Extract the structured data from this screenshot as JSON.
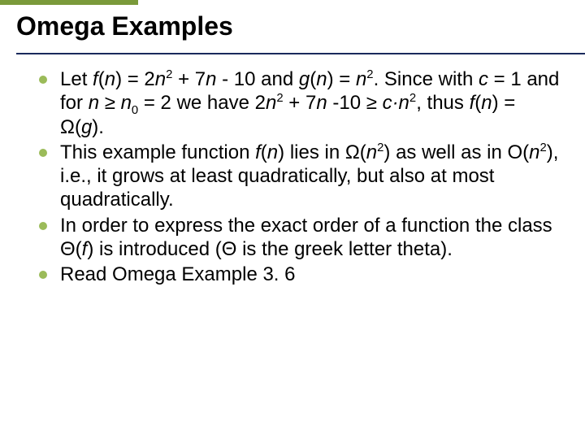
{
  "slide": {
    "title": "Omega Examples",
    "title_fontsize": 32,
    "title_color": "#000000",
    "accent_bar_color": "#7a9a3a",
    "rule_color": "#1a2a5c",
    "bullet_marker_color": "#9bbb59",
    "body_fontsize": 24,
    "body_color": "#000000",
    "background_color": "#ffffff",
    "bullets": [
      {
        "segments": [
          {
            "t": "Let  "
          },
          {
            "t": "f",
            "it": true
          },
          {
            "t": "("
          },
          {
            "t": "n",
            "it": true
          },
          {
            "t": ") = 2"
          },
          {
            "t": "n",
            "it": true
          },
          {
            "t": "2",
            "sup": true
          },
          {
            "t": " + 7"
          },
          {
            "t": "n",
            "it": true
          },
          {
            "t": " - 10 and "
          },
          {
            "t": "g",
            "it": true
          },
          {
            "t": "("
          },
          {
            "t": "n",
            "it": true
          },
          {
            "t": ") = "
          },
          {
            "t": "n",
            "it": true
          },
          {
            "t": "2",
            "sup": true
          },
          {
            "t": ". Since with "
          },
          {
            "t": "c",
            "it": true
          },
          {
            "t": " = 1 and for "
          },
          {
            "t": "n",
            "it": true
          },
          {
            "t": " ≥ "
          },
          {
            "t": "n",
            "it": true
          },
          {
            "t": "0",
            "sub": true
          },
          {
            "t": " = 2 we have 2"
          },
          {
            "t": "n",
            "it": true
          },
          {
            "t": "2",
            "sup": true
          },
          {
            "t": " + 7"
          },
          {
            "t": "n",
            "it": true
          },
          {
            "t": " -10 ≥ "
          },
          {
            "t": "c·n",
            "it": true
          },
          {
            "t": "2",
            "sup": true
          },
          {
            "t": ", thus "
          },
          {
            "t": "f",
            "it": true
          },
          {
            "t": "("
          },
          {
            "t": "n",
            "it": true
          },
          {
            "t": ") = Ω("
          },
          {
            "t": "g",
            "it": true
          },
          {
            "t": ")."
          }
        ]
      },
      {
        "segments": [
          {
            "t": "This example function "
          },
          {
            "t": "f",
            "it": true
          },
          {
            "t": "("
          },
          {
            "t": "n",
            "it": true
          },
          {
            "t": ") lies in Ω("
          },
          {
            "t": "n",
            "it": true
          },
          {
            "t": "2",
            "sup": true
          },
          {
            "t": ") as well as in O("
          },
          {
            "t": "n",
            "it": true
          },
          {
            "t": "2",
            "sup": true
          },
          {
            "t": "), i.e., it grows at least quadratically, but also at most quadratically."
          }
        ]
      },
      {
        "segments": [
          {
            "t": "In order to express the exact order of a function the class Θ("
          },
          {
            "t": "f",
            "it": true
          },
          {
            "t": ") is introduced (Θ is the greek letter theta)."
          }
        ]
      },
      {
        "segments": [
          {
            "t": "Read Omega Example 3. 6"
          }
        ]
      }
    ]
  }
}
